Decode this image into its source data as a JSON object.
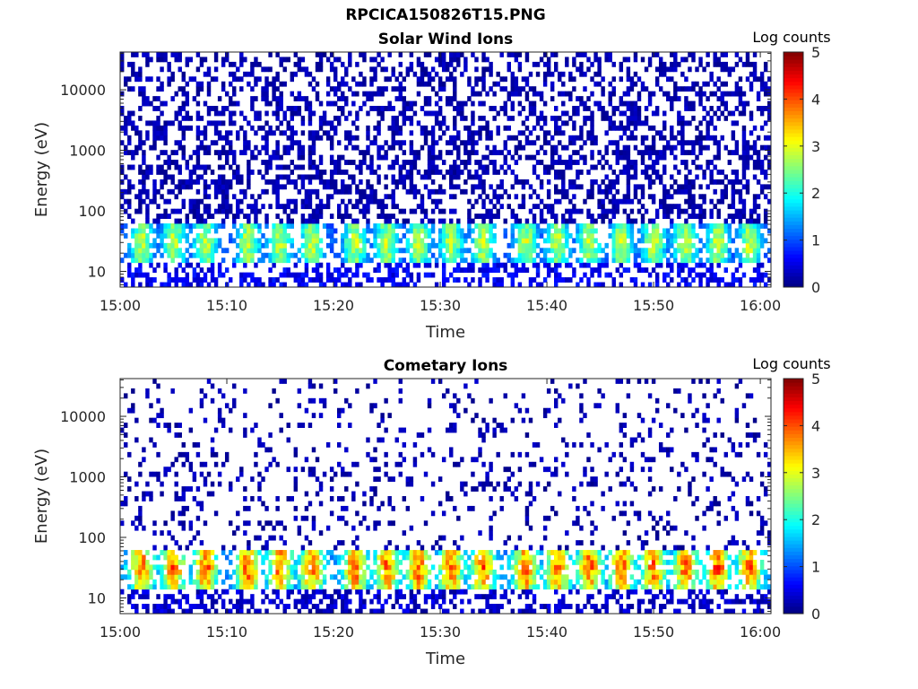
{
  "page_title": "RPCICA150826T15.PNG",
  "colormap": "jet",
  "chart_data": [
    {
      "type": "heatmap",
      "title": "Solar Wind Ions",
      "xlabel": "Time",
      "ylabel": "Energy (eV)",
      "y_scale": "log",
      "ylim": [
        5.5,
        42000
      ],
      "xlim": [
        "15:00",
        "16:01"
      ],
      "x_ticks": [
        "15:00",
        "15:10",
        "15:20",
        "15:30",
        "15:40",
        "15:50",
        "16:00"
      ],
      "y_ticks": [
        10,
        100,
        1000,
        10000
      ],
      "y_tick_labels": [
        "10",
        "100",
        "1000",
        "10000"
      ],
      "colorbar": {
        "label": "Log counts",
        "min": 0,
        "max": 5,
        "ticks": [
          "0",
          "1",
          "2",
          "3",
          "4",
          "5"
        ]
      },
      "band_energy_eV": [
        15,
        60
      ],
      "band_peak_energy_eV": 30,
      "band_peak_log_counts": 3.0,
      "background_log_counts": 0.3,
      "pulse_times": [
        "15:02",
        "15:05",
        "15:08",
        "15:12",
        "15:15",
        "15:18",
        "15:22",
        "15:25",
        "15:28",
        "15:31",
        "15:34",
        "15:38",
        "15:41",
        "15:44",
        "15:47",
        "15:50",
        "15:53",
        "15:56",
        "15:59"
      ]
    },
    {
      "type": "heatmap",
      "title": "Cometary Ions",
      "xlabel": "Time",
      "ylabel": "Energy (eV)",
      "y_scale": "log",
      "ylim": [
        5.5,
        42000
      ],
      "xlim": [
        "15:00",
        "16:01"
      ],
      "x_ticks": [
        "15:00",
        "15:10",
        "15:20",
        "15:30",
        "15:40",
        "15:50",
        "16:00"
      ],
      "y_ticks": [
        10,
        100,
        1000,
        10000
      ],
      "y_tick_labels": [
        "10",
        "100",
        "1000",
        "10000"
      ],
      "colorbar": {
        "label": "Log counts",
        "min": 0,
        "max": 5,
        "ticks": [
          "0",
          "1",
          "2",
          "3",
          "4",
          "5"
        ]
      },
      "band_energy_eV": [
        15,
        60
      ],
      "band_peak_energy_eV": 32,
      "band_peak_log_counts": 4.1,
      "background_log_counts": 0.1,
      "pulse_times": [
        "15:02",
        "15:05",
        "15:08",
        "15:12",
        "15:15",
        "15:18",
        "15:22",
        "15:25",
        "15:28",
        "15:31",
        "15:34",
        "15:38",
        "15:41",
        "15:44",
        "15:47",
        "15:50",
        "15:53",
        "15:56",
        "15:59"
      ]
    }
  ]
}
